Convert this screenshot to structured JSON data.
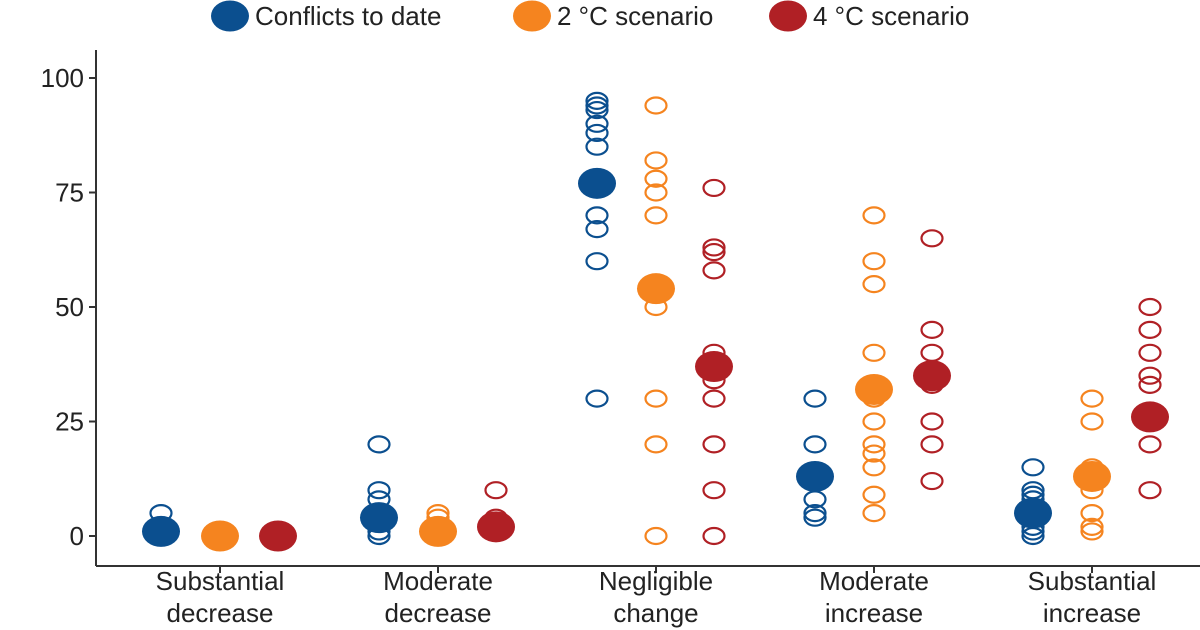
{
  "chart_data": {
    "type": "scatter",
    "ylabel": "",
    "ylim": [
      0,
      100
    ],
    "yticks": [
      0,
      25,
      50,
      75,
      100
    ],
    "grid": false,
    "legend_position": "top",
    "categories": [
      [
        "Substantial",
        "decrease"
      ],
      [
        "Moderate",
        "decrease"
      ],
      [
        "Negligible",
        "change"
      ],
      [
        "Moderate",
        "increase"
      ],
      [
        "Substantial",
        "increase"
      ]
    ],
    "series": [
      {
        "name": "Conflicts to date",
        "color": "#0b4f8f",
        "means": [
          1,
          4,
          77,
          13,
          5
        ],
        "points": [
          [
            5
          ],
          [
            20,
            10,
            8,
            1,
            0
          ],
          [
            95,
            94,
            93,
            90,
            88,
            85,
            70,
            67,
            60,
            30
          ],
          [
            30,
            20,
            8,
            5,
            4
          ],
          [
            15,
            10,
            9,
            8,
            2,
            1,
            0
          ]
        ]
      },
      {
        "name": "2 °C scenario",
        "color": "#f5841f",
        "means": [
          0,
          1,
          54,
          32,
          13
        ],
        "points": [
          [],
          [
            5,
            4
          ],
          [
            94,
            82,
            78,
            75,
            70,
            50,
            30,
            20,
            0
          ],
          [
            70,
            60,
            55,
            40,
            30,
            25,
            20,
            18,
            15,
            9,
            5
          ],
          [
            30,
            25,
            15,
            10,
            5,
            2,
            1
          ]
        ]
      },
      {
        "name": "4 °C scenario",
        "color": "#b02025",
        "means": [
          0,
          2,
          37,
          35,
          26
        ],
        "points": [
          [
            1
          ],
          [
            10,
            4,
            1
          ],
          [
            76,
            63,
            62,
            58,
            40,
            34,
            30,
            20,
            10,
            0
          ],
          [
            65,
            45,
            40,
            33,
            25,
            20,
            12
          ],
          [
            50,
            45,
            40,
            35,
            33,
            20,
            10
          ]
        ]
      }
    ]
  }
}
